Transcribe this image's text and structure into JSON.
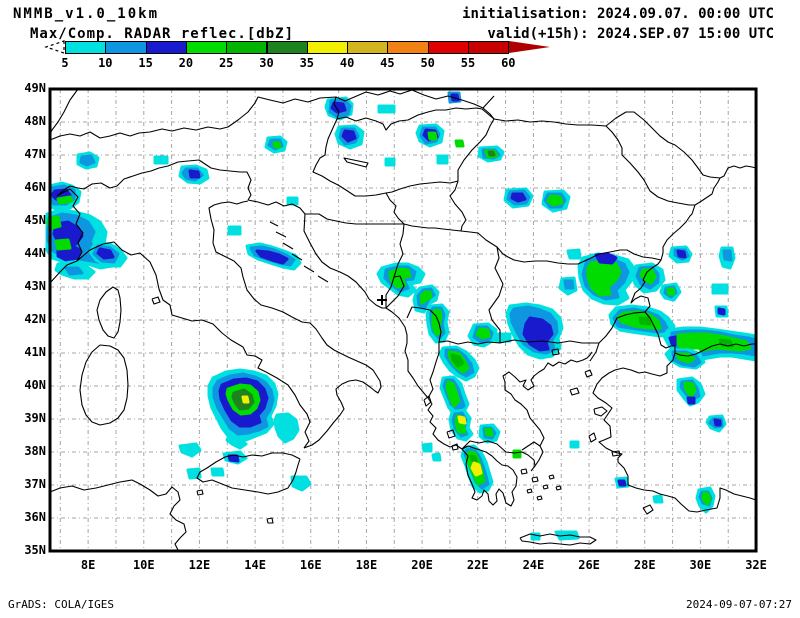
{
  "header": {
    "model": "NMMB_v1.0_10km",
    "init": "initialisation: 2024.09.07. 00:00 UTC",
    "valid": "valid(+15h): 2024.SEP.07 15:00 UTC"
  },
  "legend": {
    "label": "Max/Comp. RADAR reflec.[dbZ]",
    "ticks": [
      "5",
      "10",
      "15",
      "20",
      "25",
      "30",
      "35",
      "40",
      "45",
      "50",
      "55",
      "60"
    ],
    "colors": [
      "#00E0E0",
      "#0F96E1",
      "#1919CD",
      "#00DC00",
      "#00B400",
      "#1E821E",
      "#F0F000",
      "#D2B41E",
      "#F08214",
      "#E10000",
      "#C80000"
    ],
    "overflow_color": "#AF0000"
  },
  "axes": {
    "lat_labels": [
      "49N",
      "48N",
      "47N",
      "46N",
      "45N",
      "44N",
      "43N",
      "42N",
      "41N",
      "40N",
      "39N",
      "38N",
      "37N",
      "36N",
      "35N"
    ],
    "lon_labels": [
      "8E",
      "10E",
      "12E",
      "14E",
      "16E",
      "18E",
      "20E",
      "22E",
      "24E",
      "26E",
      "28E",
      "30E",
      "32E"
    ]
  },
  "footer": {
    "left": "GrADS: COLA/IGES",
    "right": "2024-09-07-07:27"
  }
}
